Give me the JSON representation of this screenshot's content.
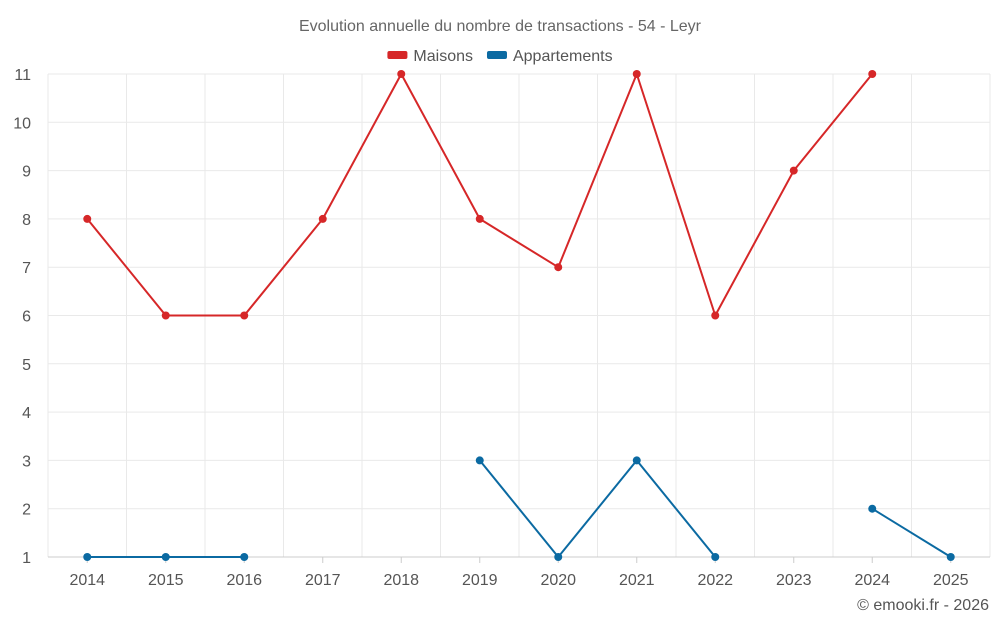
{
  "chart_data": {
    "type": "line",
    "title": "Evolution annuelle du nombre de transactions - 54 - Leyr",
    "categories": [
      "2014",
      "2015",
      "2016",
      "2017",
      "2018",
      "2019",
      "2020",
      "2021",
      "2022",
      "2023",
      "2024",
      "2025"
    ],
    "series": [
      {
        "name": "Maisons",
        "color": "#d62728",
        "values": [
          8,
          6,
          6,
          8,
          11,
          8,
          7,
          11,
          6,
          9,
          11,
          null
        ]
      },
      {
        "name": "Appartements",
        "color": "#0b6aa2",
        "values": [
          1,
          1,
          1,
          null,
          null,
          3,
          1,
          3,
          1,
          null,
          2,
          1
        ]
      }
    ],
    "yticks": [
      1,
      2,
      3,
      4,
      5,
      6,
      7,
      8,
      9,
      10,
      11
    ],
    "ylim": [
      1,
      11
    ],
    "xlabel": "",
    "ylabel": "",
    "grid": true,
    "legend": "top-center"
  },
  "credit": "© emooki.fr - 2026"
}
